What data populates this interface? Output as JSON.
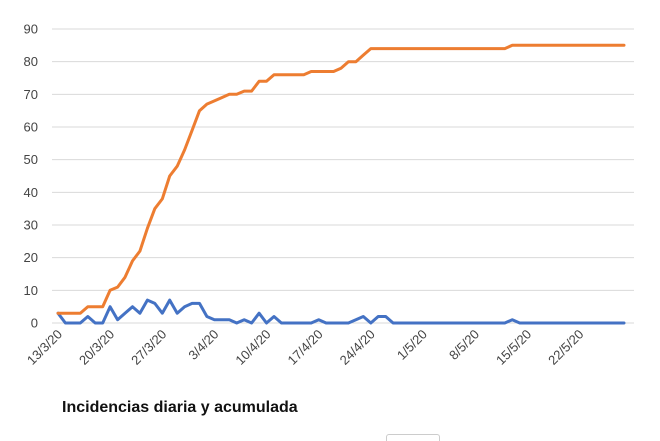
{
  "chart_data": {
    "type": "line",
    "title": "Incidencias diaria y acumulada",
    "xlabel": "",
    "ylabel": "",
    "ylim": [
      0,
      90
    ],
    "yticks": [
      0,
      10,
      20,
      30,
      40,
      50,
      60,
      70,
      80,
      90
    ],
    "grid": true,
    "legend": "none",
    "x_tick_labels": [
      "13/3/20",
      "20/3/20",
      "27/3/20",
      "3/4/20",
      "10/4/20",
      "17/4/20",
      "24/4/20",
      "1/5/20",
      "8/5/20",
      "15/5/20",
      "22/5/20"
    ],
    "x": [
      "13/3/20",
      "14/3/20",
      "15/3/20",
      "16/3/20",
      "17/3/20",
      "18/3/20",
      "19/3/20",
      "20/3/20",
      "21/3/20",
      "22/3/20",
      "23/3/20",
      "24/3/20",
      "25/3/20",
      "26/3/20",
      "27/3/20",
      "28/3/20",
      "29/3/20",
      "30/3/20",
      "31/3/20",
      "1/4/20",
      "2/4/20",
      "3/4/20",
      "4/4/20",
      "5/4/20",
      "6/4/20",
      "7/4/20",
      "8/4/20",
      "9/4/20",
      "10/4/20",
      "11/4/20",
      "12/4/20",
      "13/4/20",
      "14/4/20",
      "15/4/20",
      "16/4/20",
      "17/4/20",
      "18/4/20",
      "19/4/20",
      "20/4/20",
      "21/4/20",
      "22/4/20",
      "23/4/20",
      "24/4/20",
      "25/4/20",
      "26/4/20",
      "27/4/20",
      "28/4/20",
      "29/4/20",
      "30/4/20",
      "1/5/20",
      "2/5/20",
      "3/5/20",
      "4/5/20",
      "5/5/20",
      "6/5/20",
      "7/5/20",
      "8/5/20",
      "9/5/20",
      "10/5/20",
      "11/5/20",
      "12/5/20",
      "13/5/20",
      "14/5/20",
      "15/5/20",
      "16/5/20",
      "17/5/20",
      "18/5/20",
      "19/5/20",
      "20/5/20",
      "21/5/20",
      "22/5/20",
      "23/5/20",
      "24/5/20",
      "25/5/20",
      "26/5/20",
      "27/5/20",
      "28/5/20"
    ],
    "series": [
      {
        "color": "#4472c4",
        "values": [
          3,
          0,
          0,
          0,
          2,
          0,
          0,
          5,
          1,
          3,
          5,
          3,
          7,
          6,
          3,
          7,
          3,
          5,
          6,
          6,
          2,
          1,
          1,
          1,
          0,
          1,
          0,
          3,
          0,
          2,
          0,
          0,
          0,
          0,
          0,
          1,
          0,
          0,
          0,
          0,
          1,
          2,
          0,
          2,
          2,
          0,
          0,
          0,
          0,
          0,
          0,
          0,
          0,
          0,
          0,
          0,
          0,
          0,
          0,
          0,
          0,
          1,
          0,
          0,
          0,
          0,
          0,
          0,
          0,
          0,
          0,
          0,
          0,
          0,
          0,
          0,
          0
        ]
      },
      {
        "color": "#ed7d31",
        "values": [
          3,
          3,
          3,
          3,
          5,
          5,
          5,
          10,
          11,
          14,
          19,
          22,
          29,
          35,
          38,
          45,
          48,
          53,
          59,
          65,
          67,
          68,
          69,
          70,
          70,
          71,
          71,
          74,
          74,
          76,
          76,
          76,
          76,
          76,
          77,
          77,
          77,
          77,
          78,
          80,
          80,
          82,
          84,
          84,
          84,
          84,
          84,
          84,
          84,
          84,
          84,
          84,
          84,
          84,
          84,
          84,
          84,
          84,
          84,
          84,
          84,
          85,
          85,
          85,
          85,
          85,
          85,
          85,
          85,
          85,
          85,
          85,
          85,
          85,
          85,
          85,
          85
        ]
      }
    ]
  },
  "caption": "Incidencias diaria y acumulada"
}
